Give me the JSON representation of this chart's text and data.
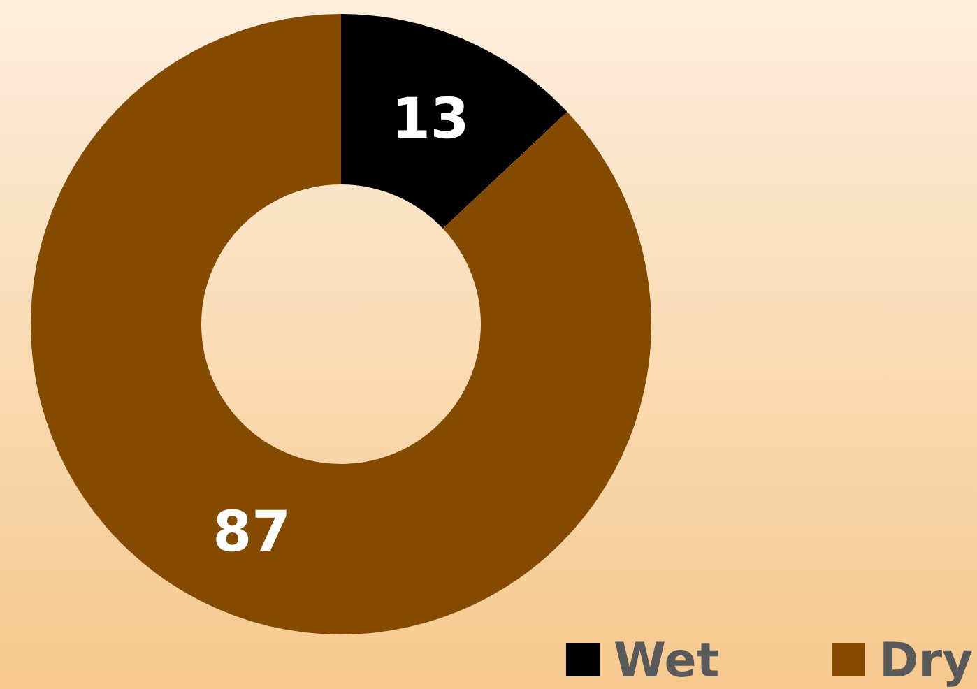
{
  "chart_data": {
    "type": "donut",
    "categories": [
      "Wet",
      "Dry"
    ],
    "values": [
      13,
      87
    ],
    "colors": [
      "#000000",
      "#844a00"
    ],
    "data_labels": true,
    "legend": "bottom right"
  }
}
